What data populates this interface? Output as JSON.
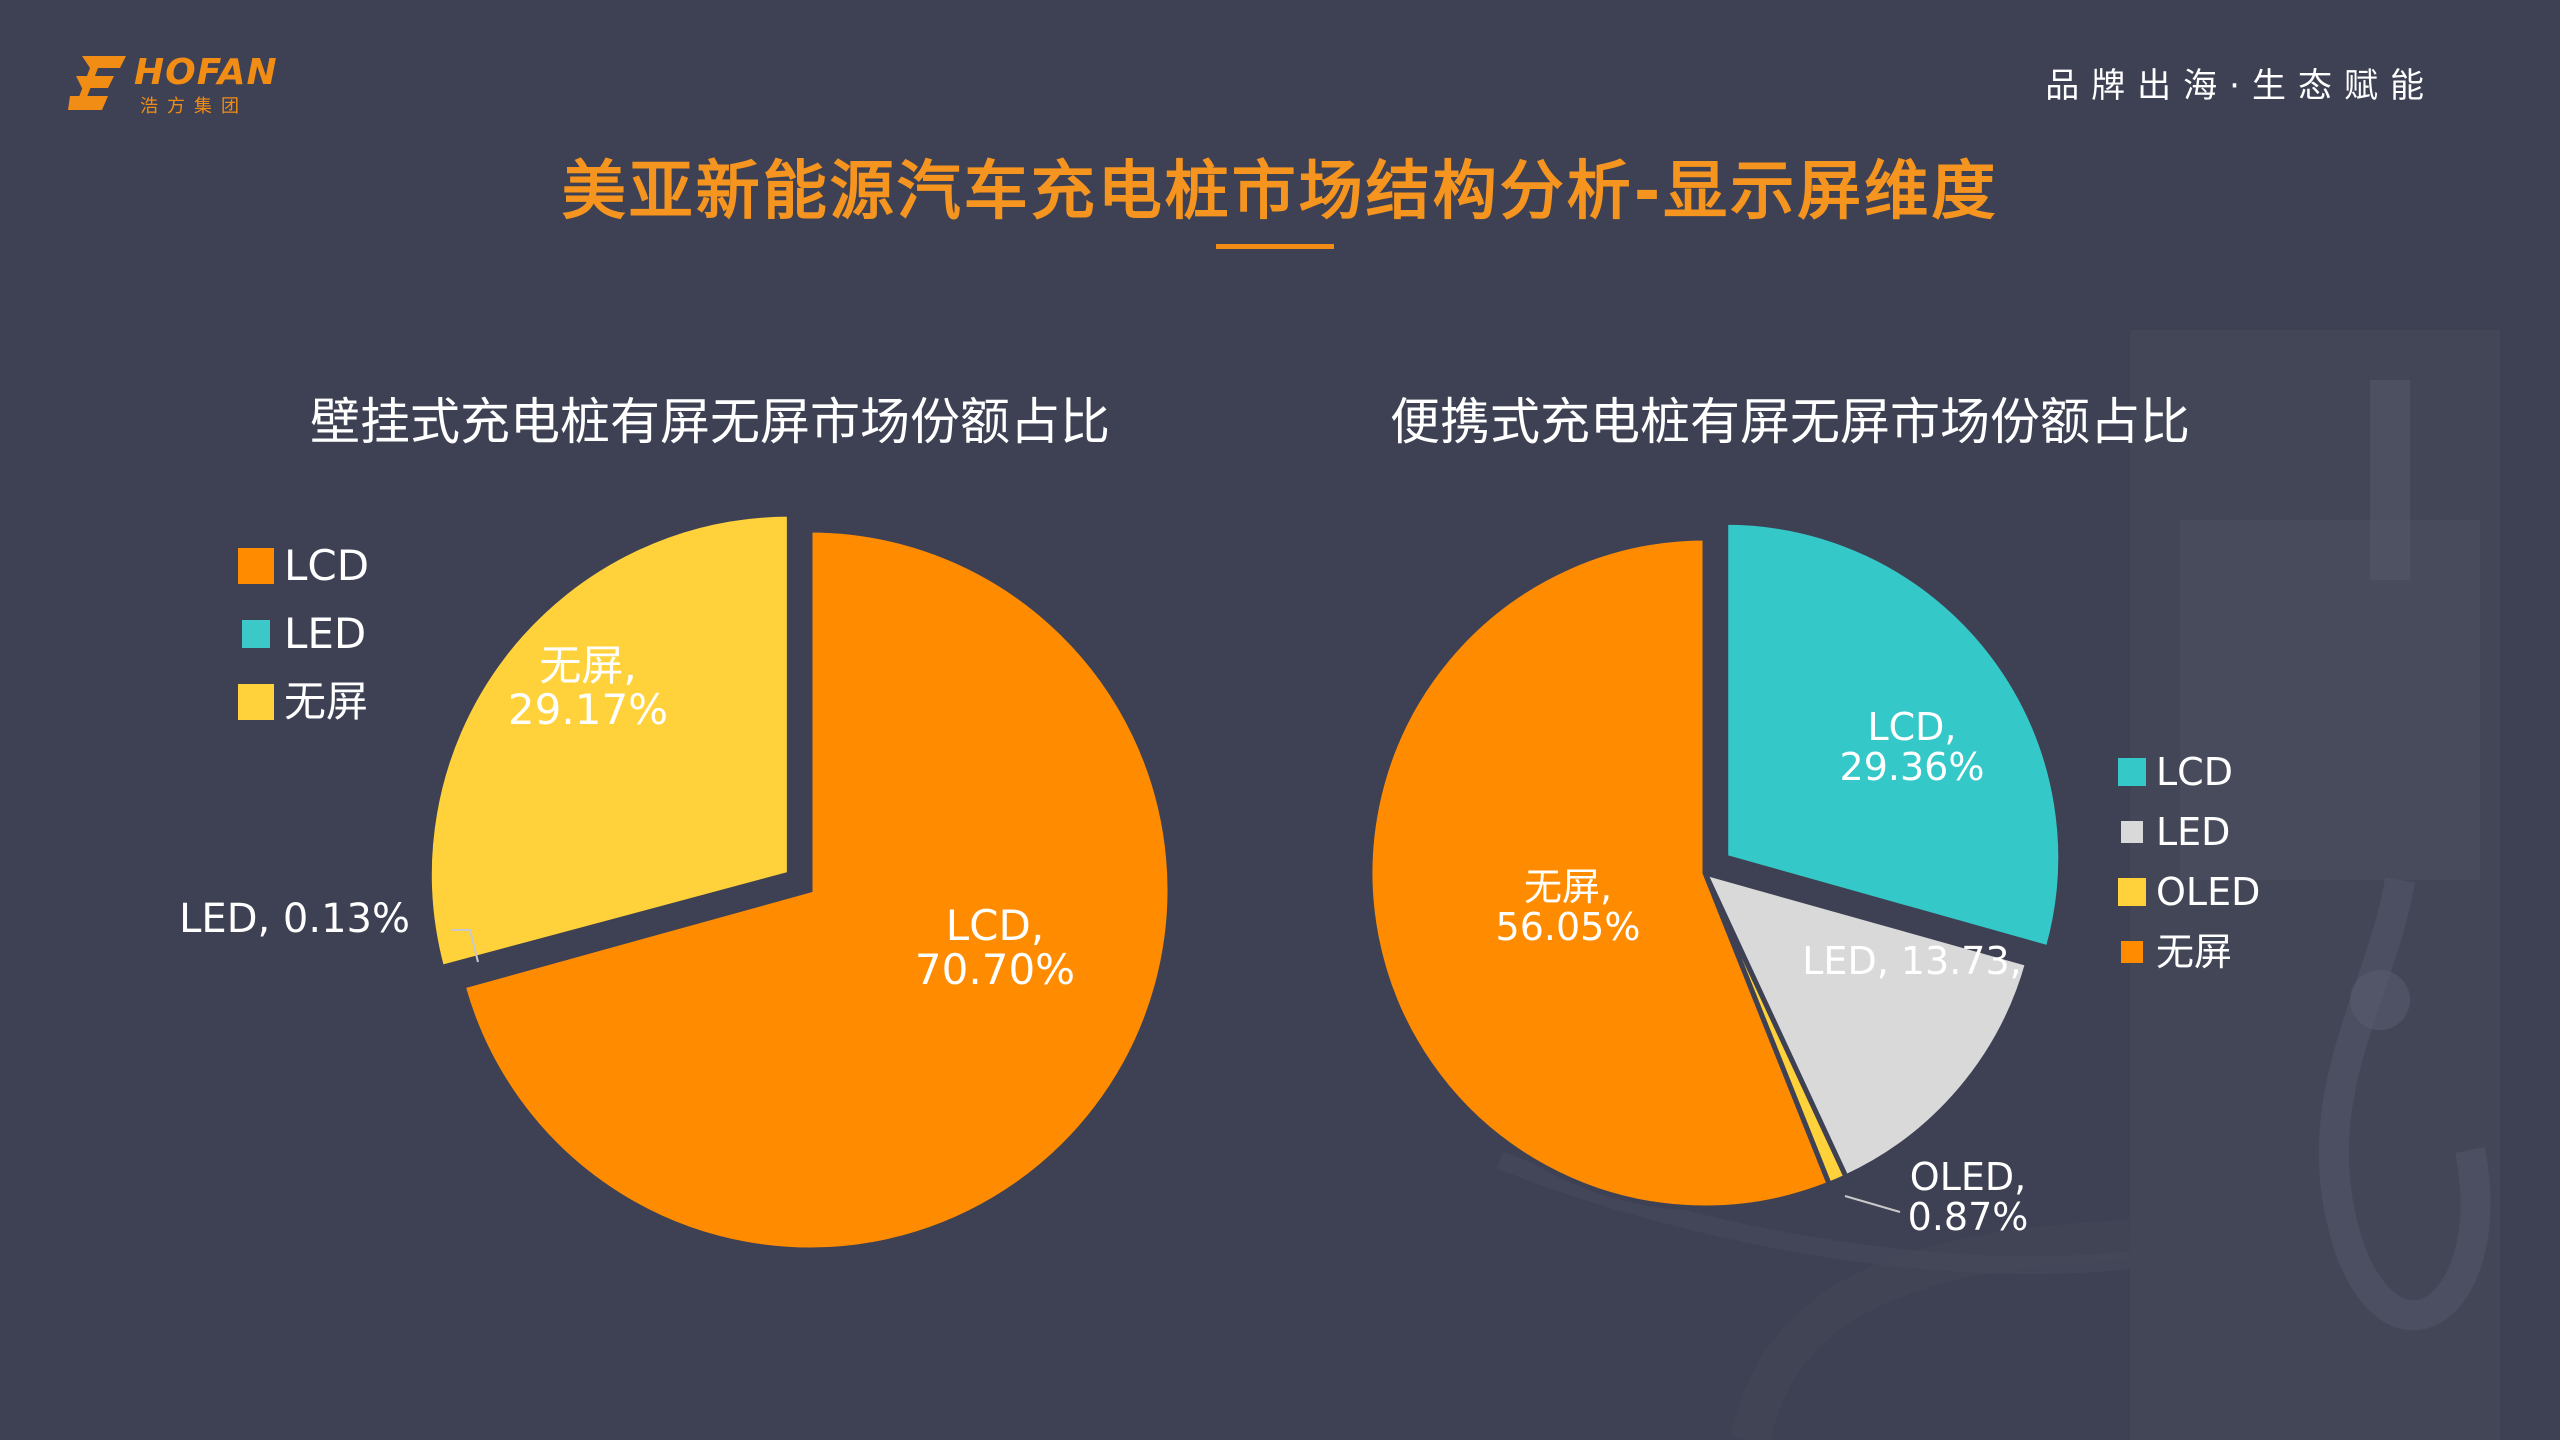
{
  "brand": {
    "name": "HOFAN",
    "sub": "浩方集团",
    "slogan": "品牌出海·生态赋能"
  },
  "title": "美亚新能源汽车充电桩市场结构分析-显示屏维度",
  "chart_data": [
    {
      "type": "pie",
      "title": "壁挂式充电桩有屏无屏市场份额占比",
      "legend_position": "top-left",
      "slices": [
        {
          "name": "LCD",
          "value": 70.7,
          "label_name": "LCD,",
          "label_value": "70.70%",
          "color": "#ff8c00"
        },
        {
          "name": "LED",
          "value": 0.13,
          "label_name": "LED, 0.13%",
          "label_value": "",
          "color": "#3cc8c8"
        },
        {
          "name": "无屏",
          "value": 29.17,
          "label_name": "无屏,",
          "label_value": "29.17%",
          "color": "#ffd23c"
        }
      ]
    },
    {
      "type": "pie",
      "title": "便携式充电桩有屏无屏市场份额占比",
      "legend_position": "right",
      "slices": [
        {
          "name": "LCD",
          "value": 29.36,
          "label_name": "LCD,",
          "label_value": "29.36%",
          "color": "#35c8c8"
        },
        {
          "name": "LED",
          "value": 13.73,
          "label_name": "LED, 13.73,",
          "label_value": "",
          "color": "#d9d9d9"
        },
        {
          "name": "OLED",
          "value": 0.87,
          "label_name": "OLED,",
          "label_value": "0.87%",
          "color": "#ffd23c"
        },
        {
          "name": "无屏",
          "value": 56.05,
          "label_name": "无屏,",
          "label_value": "56.05%",
          "color": "#ff8c00"
        }
      ]
    }
  ],
  "colors": {
    "background": "#3e4153",
    "accent": "#f18c15"
  },
  "icons": {
    "logo": "hofan-logo-icon"
  }
}
